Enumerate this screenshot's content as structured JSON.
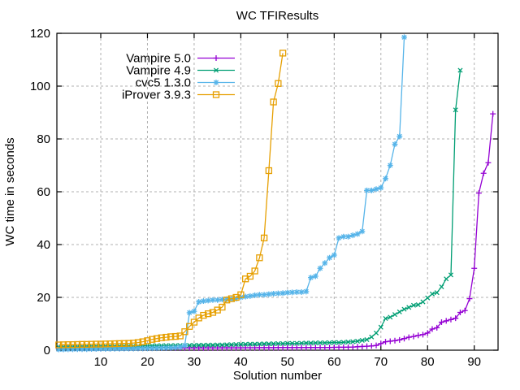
{
  "window": {
    "background": "#ffffff"
  },
  "chart_data": {
    "type": "line",
    "title": "WC TFIResults",
    "xlabel": "Solution number",
    "ylabel": "WC time in seconds",
    "xlim": [
      0.6,
      95.1
    ],
    "ylim": [
      0,
      120
    ],
    "xticks": [
      10,
      20,
      30,
      40,
      50,
      60,
      70,
      80,
      90
    ],
    "yticks": [
      0,
      20,
      40,
      60,
      80,
      100,
      120
    ],
    "grid": true,
    "grid_style": "dashed-gray",
    "legend_position": "inside-top-left",
    "x_start": 1,
    "x_step": 1,
    "x_meaning": "solution number (cactus plot, solutions sorted by solve time)",
    "series": [
      {
        "name": "Vampire 5.0",
        "color": "#9400d3",
        "marker": "plus",
        "values": [
          0.6,
          0.6,
          0.65,
          0.65,
          0.65,
          0.7,
          0.7,
          0.7,
          0.7,
          0.7,
          0.72,
          0.72,
          0.75,
          0.75,
          0.75,
          0.75,
          0.78,
          0.78,
          0.78,
          0.8,
          0.8,
          0.8,
          0.8,
          0.8,
          0.82,
          0.82,
          0.82,
          0.85,
          0.85,
          0.85,
          0.85,
          0.85,
          0.88,
          0.88,
          0.88,
          0.9,
          0.9,
          0.9,
          0.9,
          0.9,
          0.92,
          0.92,
          0.92,
          0.95,
          0.95,
          0.95,
          0.95,
          0.98,
          0.98,
          0.98,
          1,
          1,
          1,
          1,
          1.02,
          1.02,
          1.05,
          1.05,
          1.05,
          1.08,
          1.1,
          1.1,
          1.15,
          1.2,
          1.3,
          1.4,
          1.5,
          1.6,
          1.8,
          2.5,
          3.2,
          3.4,
          3.6,
          3.9,
          4.4,
          4.9,
          5.2,
          5.6,
          5.9,
          6.5,
          8,
          8.5,
          10.6,
          11.1,
          11.6,
          12.1,
          14.3,
          15,
          19.5,
          31,
          59.5,
          67,
          71,
          89.5
        ]
      },
      {
        "name": "Vampire 4.9",
        "color": "#009e73",
        "marker": "cross",
        "values": [
          1.2,
          1.25,
          1.3,
          1.3,
          1.35,
          1.35,
          1.4,
          1.4,
          1.45,
          1.45,
          1.5,
          1.5,
          1.5,
          1.55,
          1.55,
          1.6,
          1.6,
          1.6,
          1.65,
          1.65,
          1.7,
          1.7,
          1.7,
          1.75,
          1.75,
          1.8,
          1.8,
          1.8,
          1.85,
          1.85,
          1.9,
          1.9,
          1.95,
          1.95,
          2,
          2,
          2.05,
          2.1,
          2.15,
          2.2,
          2.25,
          2.3,
          2.3,
          2.35,
          2.4,
          2.4,
          2.45,
          2.5,
          2.5,
          2.55,
          2.6,
          2.6,
          2.65,
          2.7,
          2.7,
          2.75,
          2.8,
          2.8,
          2.85,
          2.9,
          2.9,
          3,
          3.1,
          3.2,
          3.4,
          3.7,
          4,
          5,
          6.5,
          8.7,
          12,
          12.5,
          13.5,
          14.5,
          15.5,
          16.2,
          17,
          17.2,
          18.3,
          19.8,
          21.3,
          21.8,
          24,
          27,
          28.5,
          91,
          106
        ]
      },
      {
        "name": "cvc5 1.3.0",
        "color": "#56b4e9",
        "marker": "asterisk",
        "values": [
          0.3,
          0.3,
          0.35,
          0.35,
          0.4,
          0.4,
          0.4,
          0.45,
          0.45,
          0.5,
          0.5,
          0.5,
          0.55,
          0.55,
          0.6,
          0.6,
          0.6,
          0.65,
          0.65,
          0.7,
          0.7,
          0.75,
          0.8,
          0.85,
          0.9,
          1,
          1.2,
          1.8,
          14.2,
          14.7,
          18.3,
          18.6,
          18.8,
          19,
          19,
          19.2,
          19.3,
          19.4,
          19.5,
          20,
          20.3,
          20.5,
          20.8,
          21,
          21,
          21.2,
          21.4,
          21.5,
          21.6,
          21.8,
          21.9,
          22,
          22,
          22.2,
          27.5,
          28,
          31,
          33,
          35,
          36,
          42.5,
          43,
          43,
          43.5,
          44,
          45,
          60.5,
          60.5,
          61,
          61.5,
          65,
          70,
          78,
          81,
          118.5
        ]
      },
      {
        "name": "iProver 3.9.3",
        "color": "#e69f00",
        "marker": "square",
        "values": [
          2,
          2.05,
          2.1,
          2.1,
          2.15,
          2.2,
          2.2,
          2.25,
          2.3,
          2.3,
          2.35,
          2.4,
          2.45,
          2.5,
          2.55,
          2.6,
          2.7,
          2.9,
          3.2,
          3.6,
          4.1,
          4.4,
          4.7,
          4.9,
          5.1,
          5.2,
          5.4,
          7,
          9,
          10.6,
          12.2,
          13.2,
          13.8,
          14.3,
          15.2,
          16.3,
          19,
          19.5,
          20,
          21,
          27,
          28,
          30,
          35,
          42.5,
          68,
          94,
          101,
          112.5
        ]
      }
    ]
  },
  "style": {
    "border_color": "#000000",
    "grid_color": "#b0b0b0",
    "text_color": "#000000",
    "plot_background": "#ffffff"
  }
}
